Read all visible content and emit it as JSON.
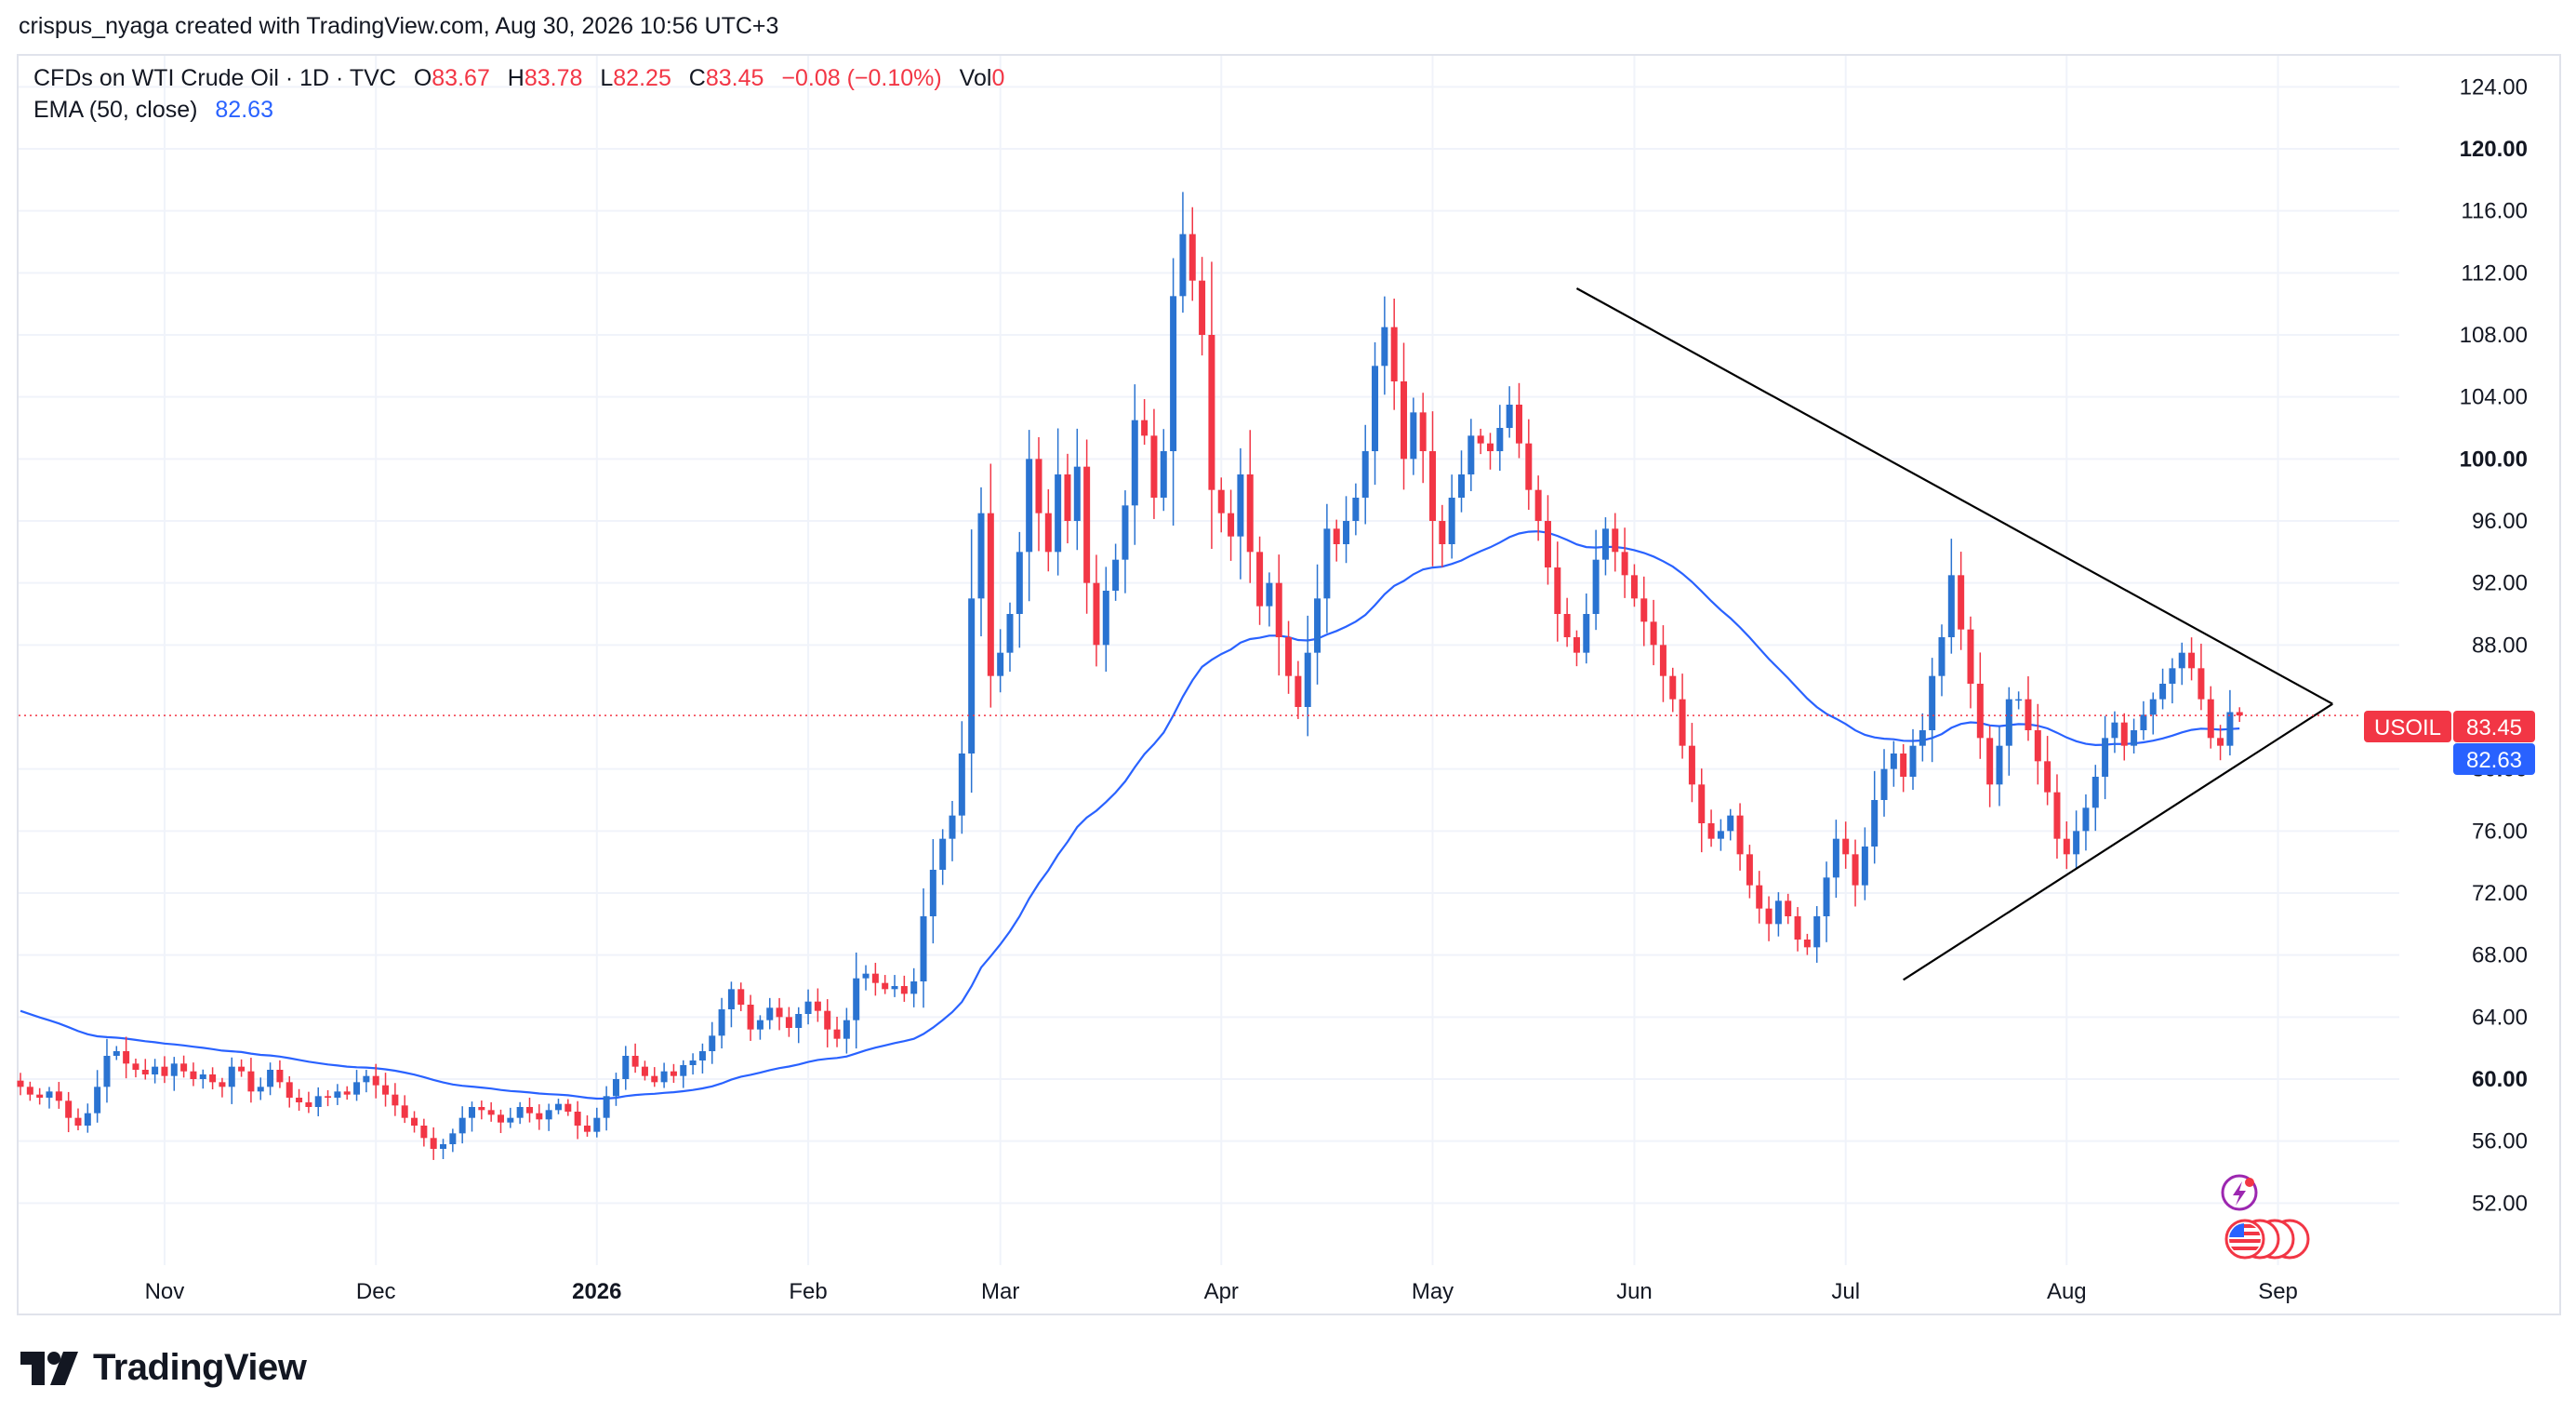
{
  "header": {
    "credit": "crispus_nyaga created with TradingView.com, Aug 30, 2026 10:56 UTC+3"
  },
  "legend": {
    "symbol": "CFDs on WTI Crude Oil · 1D · TVC",
    "o_label": "O",
    "o_value": "83.67",
    "h_label": "H",
    "h_value": "83.78",
    "l_label": "L",
    "l_value": "82.25",
    "c_label": "C",
    "c_value": "83.45",
    "change": "−0.08 (−0.10%)",
    "vol_label": "Vol",
    "vol_value": "0",
    "ema_label": "EMA (50, close)",
    "ema_value": "82.63"
  },
  "price_tags": {
    "symbol_tag": "USOIL",
    "last_price": "83.45",
    "ema_price": "82.63"
  },
  "brand": {
    "name": "TradingView"
  },
  "colors": {
    "up": "#2a73d1",
    "down": "#f23645",
    "ema": "#2962ff",
    "trendline": "#000000",
    "grid": "#f0f3fa"
  },
  "icons": [
    "lightning-event-icon",
    "us-flag-icon"
  ],
  "chart_data": {
    "type": "candlestick",
    "title": "CFDs on WTI Crude Oil · 1D · TVC",
    "ylim": [
      48,
      126
    ],
    "y_ticks": [
      {
        "label": "124.00",
        "value": 124,
        "bold": false
      },
      {
        "label": "120.00",
        "value": 120,
        "bold": true
      },
      {
        "label": "116.00",
        "value": 116,
        "bold": false
      },
      {
        "label": "112.00",
        "value": 112,
        "bold": false
      },
      {
        "label": "108.00",
        "value": 108,
        "bold": false
      },
      {
        "label": "104.00",
        "value": 104,
        "bold": false
      },
      {
        "label": "100.00",
        "value": 100,
        "bold": true
      },
      {
        "label": "96.00",
        "value": 96,
        "bold": false
      },
      {
        "label": "92.00",
        "value": 92,
        "bold": false
      },
      {
        "label": "88.00",
        "value": 88,
        "bold": false
      },
      {
        "label": "80.00",
        "value": 80,
        "bold": true
      },
      {
        "label": "76.00",
        "value": 76,
        "bold": false
      },
      {
        "label": "72.00",
        "value": 72,
        "bold": false
      },
      {
        "label": "68.00",
        "value": 68,
        "bold": false
      },
      {
        "label": "64.00",
        "value": 64,
        "bold": false
      },
      {
        "label": "60.00",
        "value": 60,
        "bold": true
      },
      {
        "label": "56.00",
        "value": 56,
        "bold": false
      },
      {
        "label": "52.00",
        "value": 52,
        "bold": false
      }
    ],
    "x_ticks": [
      {
        "label": "Nov",
        "index": 15,
        "bold": false
      },
      {
        "label": "Dec",
        "index": 37,
        "bold": false
      },
      {
        "label": "2026",
        "index": 60,
        "bold": true
      },
      {
        "label": "Feb",
        "index": 82,
        "bold": false
      },
      {
        "label": "Mar",
        "index": 102,
        "bold": false
      },
      {
        "label": "Apr",
        "index": 125,
        "bold": false
      },
      {
        "label": "May",
        "index": 147,
        "bold": false
      },
      {
        "label": "Jun",
        "index": 168,
        "bold": false
      },
      {
        "label": "Jul",
        "index": 190,
        "bold": false
      },
      {
        "label": "Aug",
        "index": 213,
        "bold": false
      },
      {
        "label": "Sep",
        "index": 235,
        "bold": false
      }
    ],
    "last_price": 83.45,
    "ema_last": 82.63,
    "closes": [
      59.5,
      59.0,
      58.8,
      59.2,
      58.6,
      57.5,
      57.0,
      57.8,
      59.5,
      61.5,
      61.8,
      61.0,
      60.6,
      60.3,
      60.8,
      60.2,
      61.0,
      60.5,
      60.0,
      60.3,
      59.8,
      59.5,
      60.8,
      60.5,
      59.2,
      59.5,
      60.6,
      59.8,
      58.8,
      58.5,
      58.2,
      58.9,
      58.8,
      59.2,
      59.0,
      59.8,
      60.2,
      59.6,
      59.0,
      58.3,
      57.5,
      57.0,
      56.2,
      55.5,
      55.8,
      56.5,
      57.5,
      58.2,
      58.0,
      57.7,
      57.2,
      57.5,
      58.2,
      57.8,
      57.4,
      58.0,
      58.4,
      57.9,
      57.0,
      56.6,
      57.5,
      58.9,
      60.0,
      61.5,
      60.8,
      60.2,
      59.8,
      60.5,
      60.2,
      60.9,
      61.2,
      61.8,
      62.8,
      64.5,
      65.8,
      64.8,
      63.2,
      63.8,
      64.6,
      64.0,
      63.3,
      64.2,
      65.0,
      64.4,
      63.2,
      62.6,
      63.8,
      66.5,
      66.8,
      66.2,
      65.8,
      66.0,
      65.5,
      66.3,
      70.5,
      73.5,
      75.5,
      77.0,
      81.0,
      91.0,
      96.5,
      86.0,
      87.5,
      90.0,
      94.0,
      100.0,
      96.5,
      94.0,
      99.0,
      96.0,
      99.5,
      92.0,
      88.0,
      91.5,
      93.5,
      97.0,
      102.5,
      101.5,
      97.5,
      100.5,
      110.5,
      114.5,
      111.5,
      108.0,
      98.0,
      96.5,
      95.0,
      99.0,
      94.0,
      90.5,
      92.0,
      88.5,
      86.0,
      84.0,
      87.5,
      91.0,
      95.5,
      94.5,
      96.0,
      97.5,
      100.5,
      106.0,
      108.5,
      105.0,
      100.0,
      103.0,
      100.5,
      96.0,
      94.5,
      97.5,
      99.0,
      101.5,
      101.0,
      100.5,
      102.0,
      103.5,
      101.0,
      98.0,
      96.0,
      93.0,
      90.0,
      88.5,
      87.5,
      90.0,
      93.5,
      95.5,
      94.0,
      92.5,
      91.0,
      89.5,
      88.0,
      86.0,
      84.5,
      81.5,
      79.0,
      76.5,
      75.5,
      76.0,
      77.0,
      74.5,
      72.5,
      71.0,
      70.0,
      71.5,
      70.5,
      69.0,
      68.5,
      70.5,
      73.0,
      75.5,
      74.5,
      72.5,
      75.0,
      78.0,
      80.0,
      81.0,
      79.5,
      81.5,
      82.5,
      86.0,
      88.5,
      92.5,
      89.0,
      85.5,
      82.0,
      79.0,
      81.5,
      84.5,
      84.5,
      82.5,
      80.5,
      78.5,
      75.5,
      74.5,
      76.0,
      77.5,
      79.5,
      82.0,
      83.0,
      81.5,
      82.5,
      83.5,
      84.5,
      85.5,
      86.5,
      87.5,
      86.5,
      84.5,
      82.0,
      81.5,
      83.67,
      83.45
    ]
  }
}
